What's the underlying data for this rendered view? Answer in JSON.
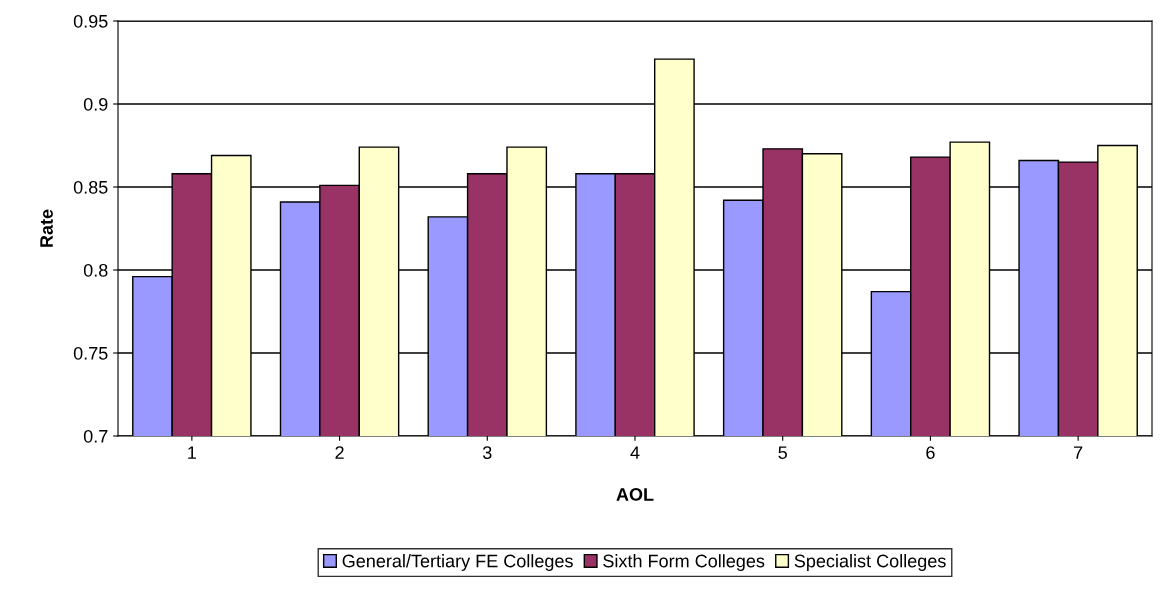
{
  "chart_data": {
    "type": "bar",
    "xlabel": "AOL",
    "ylabel": "Rate",
    "categories": [
      "1",
      "2",
      "3",
      "4",
      "5",
      "6",
      "7"
    ],
    "series": [
      {
        "name": "General/Tertiary FE Colleges",
        "color": "#9999ff",
        "values": [
          0.796,
          0.841,
          0.832,
          0.858,
          0.842,
          0.787,
          0.866
        ]
      },
      {
        "name": "Sixth Form Colleges",
        "color": "#993366",
        "values": [
          0.858,
          0.851,
          0.858,
          0.858,
          0.873,
          0.868,
          0.865
        ]
      },
      {
        "name": "Specialist Colleges",
        "color": "#ffffcc",
        "values": [
          0.869,
          0.874,
          0.874,
          0.927,
          0.87,
          0.877,
          0.875
        ]
      }
    ],
    "ylim": [
      0.7,
      0.95
    ],
    "yticks": [
      0.7,
      0.75,
      0.8,
      0.85,
      0.9,
      0.95
    ],
    "grid": "y",
    "legend": "bottom"
  }
}
